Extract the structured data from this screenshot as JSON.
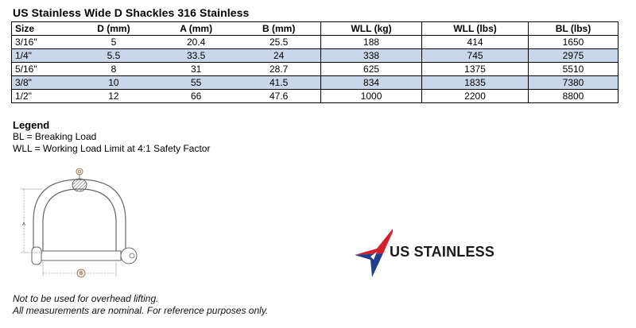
{
  "title": "US Stainless Wide D Shackles 316 Stainless",
  "table": {
    "headers": [
      "Size",
      "D (mm)",
      "A (mm)",
      "B (mm)",
      "WLL (kg)",
      "WLL (lbs)",
      "BL (lbs)"
    ],
    "rows": [
      [
        "3/16\"",
        "5",
        "20.4",
        "25.5",
        "188",
        "414",
        "1650"
      ],
      [
        "1/4\"",
        "5.5",
        "33.5",
        "24",
        "338",
        "745",
        "2975"
      ],
      [
        "5/16\"",
        "8",
        "31",
        "28.7",
        "625",
        "1375",
        "5510"
      ],
      [
        "3/8\"",
        "10",
        "55",
        "41.5",
        "834",
        "1835",
        "7380"
      ],
      [
        "1/2\"",
        "12",
        "66",
        "47.6",
        "1000",
        "2200",
        "8800"
      ]
    ]
  },
  "legend": {
    "title": "Legend",
    "lines": [
      "BL = Breaking Load",
      "WLL = Working Load Limit at 4:1 Safety Factor"
    ]
  },
  "diagram": {
    "label_d": "D",
    "label_a": "A",
    "label_b": "B"
  },
  "logo": {
    "text": "US STAINLESS",
    "colors": {
      "red": "#d3202f",
      "blue": "#1f3f8c"
    }
  },
  "notes": [
    "Not to be used for overhead lifting.",
    "All measurements are nominal. For reference purposes only."
  ]
}
